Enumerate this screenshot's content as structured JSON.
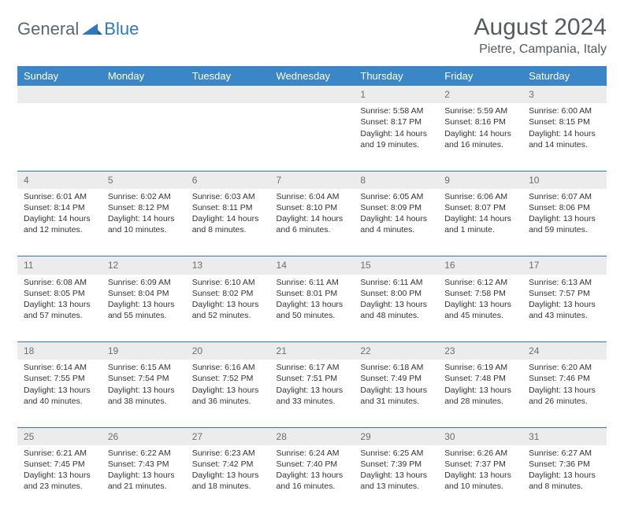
{
  "brand": {
    "part1": "General",
    "part2": "Blue"
  },
  "title": "August 2024",
  "location": "Pietre, Campania, Italy",
  "header_bg": "#3b86c6",
  "header_fg": "#ffffff",
  "daynum_bg": "#ececec",
  "rule_color": "#2f78bd",
  "text_color": "#333333",
  "weekday_labels": [
    "Sunday",
    "Monday",
    "Tuesday",
    "Wednesday",
    "Thursday",
    "Friday",
    "Saturday"
  ],
  "weeks": [
    [
      null,
      null,
      null,
      null,
      {
        "n": "1",
        "sr": "Sunrise: 5:58 AM",
        "ss": "Sunset: 8:17 PM",
        "d1": "Daylight: 14 hours",
        "d2": "and 19 minutes."
      },
      {
        "n": "2",
        "sr": "Sunrise: 5:59 AM",
        "ss": "Sunset: 8:16 PM",
        "d1": "Daylight: 14 hours",
        "d2": "and 16 minutes."
      },
      {
        "n": "3",
        "sr": "Sunrise: 6:00 AM",
        "ss": "Sunset: 8:15 PM",
        "d1": "Daylight: 14 hours",
        "d2": "and 14 minutes."
      }
    ],
    [
      {
        "n": "4",
        "sr": "Sunrise: 6:01 AM",
        "ss": "Sunset: 8:14 PM",
        "d1": "Daylight: 14 hours",
        "d2": "and 12 minutes."
      },
      {
        "n": "5",
        "sr": "Sunrise: 6:02 AM",
        "ss": "Sunset: 8:12 PM",
        "d1": "Daylight: 14 hours",
        "d2": "and 10 minutes."
      },
      {
        "n": "6",
        "sr": "Sunrise: 6:03 AM",
        "ss": "Sunset: 8:11 PM",
        "d1": "Daylight: 14 hours",
        "d2": "and 8 minutes."
      },
      {
        "n": "7",
        "sr": "Sunrise: 6:04 AM",
        "ss": "Sunset: 8:10 PM",
        "d1": "Daylight: 14 hours",
        "d2": "and 6 minutes."
      },
      {
        "n": "8",
        "sr": "Sunrise: 6:05 AM",
        "ss": "Sunset: 8:09 PM",
        "d1": "Daylight: 14 hours",
        "d2": "and 4 minutes."
      },
      {
        "n": "9",
        "sr": "Sunrise: 6:06 AM",
        "ss": "Sunset: 8:07 PM",
        "d1": "Daylight: 14 hours",
        "d2": "and 1 minute."
      },
      {
        "n": "10",
        "sr": "Sunrise: 6:07 AM",
        "ss": "Sunset: 8:06 PM",
        "d1": "Daylight: 13 hours",
        "d2": "and 59 minutes."
      }
    ],
    [
      {
        "n": "11",
        "sr": "Sunrise: 6:08 AM",
        "ss": "Sunset: 8:05 PM",
        "d1": "Daylight: 13 hours",
        "d2": "and 57 minutes."
      },
      {
        "n": "12",
        "sr": "Sunrise: 6:09 AM",
        "ss": "Sunset: 8:04 PM",
        "d1": "Daylight: 13 hours",
        "d2": "and 55 minutes."
      },
      {
        "n": "13",
        "sr": "Sunrise: 6:10 AM",
        "ss": "Sunset: 8:02 PM",
        "d1": "Daylight: 13 hours",
        "d2": "and 52 minutes."
      },
      {
        "n": "14",
        "sr": "Sunrise: 6:11 AM",
        "ss": "Sunset: 8:01 PM",
        "d1": "Daylight: 13 hours",
        "d2": "and 50 minutes."
      },
      {
        "n": "15",
        "sr": "Sunrise: 6:11 AM",
        "ss": "Sunset: 8:00 PM",
        "d1": "Daylight: 13 hours",
        "d2": "and 48 minutes."
      },
      {
        "n": "16",
        "sr": "Sunrise: 6:12 AM",
        "ss": "Sunset: 7:58 PM",
        "d1": "Daylight: 13 hours",
        "d2": "and 45 minutes."
      },
      {
        "n": "17",
        "sr": "Sunrise: 6:13 AM",
        "ss": "Sunset: 7:57 PM",
        "d1": "Daylight: 13 hours",
        "d2": "and 43 minutes."
      }
    ],
    [
      {
        "n": "18",
        "sr": "Sunrise: 6:14 AM",
        "ss": "Sunset: 7:55 PM",
        "d1": "Daylight: 13 hours",
        "d2": "and 40 minutes."
      },
      {
        "n": "19",
        "sr": "Sunrise: 6:15 AM",
        "ss": "Sunset: 7:54 PM",
        "d1": "Daylight: 13 hours",
        "d2": "and 38 minutes."
      },
      {
        "n": "20",
        "sr": "Sunrise: 6:16 AM",
        "ss": "Sunset: 7:52 PM",
        "d1": "Daylight: 13 hours",
        "d2": "and 36 minutes."
      },
      {
        "n": "21",
        "sr": "Sunrise: 6:17 AM",
        "ss": "Sunset: 7:51 PM",
        "d1": "Daylight: 13 hours",
        "d2": "and 33 minutes."
      },
      {
        "n": "22",
        "sr": "Sunrise: 6:18 AM",
        "ss": "Sunset: 7:49 PM",
        "d1": "Daylight: 13 hours",
        "d2": "and 31 minutes."
      },
      {
        "n": "23",
        "sr": "Sunrise: 6:19 AM",
        "ss": "Sunset: 7:48 PM",
        "d1": "Daylight: 13 hours",
        "d2": "and 28 minutes."
      },
      {
        "n": "24",
        "sr": "Sunrise: 6:20 AM",
        "ss": "Sunset: 7:46 PM",
        "d1": "Daylight: 13 hours",
        "d2": "and 26 minutes."
      }
    ],
    [
      {
        "n": "25",
        "sr": "Sunrise: 6:21 AM",
        "ss": "Sunset: 7:45 PM",
        "d1": "Daylight: 13 hours",
        "d2": "and 23 minutes."
      },
      {
        "n": "26",
        "sr": "Sunrise: 6:22 AM",
        "ss": "Sunset: 7:43 PM",
        "d1": "Daylight: 13 hours",
        "d2": "and 21 minutes."
      },
      {
        "n": "27",
        "sr": "Sunrise: 6:23 AM",
        "ss": "Sunset: 7:42 PM",
        "d1": "Daylight: 13 hours",
        "d2": "and 18 minutes."
      },
      {
        "n": "28",
        "sr": "Sunrise: 6:24 AM",
        "ss": "Sunset: 7:40 PM",
        "d1": "Daylight: 13 hours",
        "d2": "and 16 minutes."
      },
      {
        "n": "29",
        "sr": "Sunrise: 6:25 AM",
        "ss": "Sunset: 7:39 PM",
        "d1": "Daylight: 13 hours",
        "d2": "and 13 minutes."
      },
      {
        "n": "30",
        "sr": "Sunrise: 6:26 AM",
        "ss": "Sunset: 7:37 PM",
        "d1": "Daylight: 13 hours",
        "d2": "and 10 minutes."
      },
      {
        "n": "31",
        "sr": "Sunrise: 6:27 AM",
        "ss": "Sunset: 7:36 PM",
        "d1": "Daylight: 13 hours",
        "d2": "and 8 minutes."
      }
    ]
  ]
}
